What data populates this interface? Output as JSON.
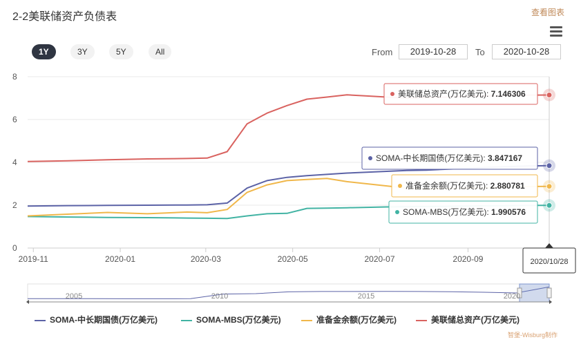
{
  "header": {
    "title": "2-2美联储资产负债表",
    "view_link": "查看图表"
  },
  "range_selector": {
    "buttons": [
      "1Y",
      "3Y",
      "5Y",
      "All"
    ],
    "selected": "1Y",
    "from_label": "From",
    "from_value": "2019-10-28",
    "to_label": "To",
    "to_value": "2020-10-28"
  },
  "colors": {
    "soma_treasury": "#5b62a6",
    "soma_mbs": "#41b3a3",
    "reserves": "#f0b74a",
    "total_assets": "#d9625f"
  },
  "chart_data": {
    "type": "line",
    "x_tick_labels": [
      "2019-11",
      "2020-01",
      "2020-03",
      "2020-05",
      "2020-07",
      "2020-09"
    ],
    "y_tick_labels": [
      "0",
      "2",
      "4",
      "6",
      "8"
    ],
    "ylim": [
      0,
      8
    ],
    "grid": true,
    "legend_position": "bottom",
    "x": [
      "2019-10-28",
      "2019-11-25",
      "2019-12-23",
      "2020-01-20",
      "2020-02-17",
      "2020-03-02",
      "2020-03-16",
      "2020-03-30",
      "2020-04-13",
      "2020-04-27",
      "2020-05-11",
      "2020-05-25",
      "2020-06-08",
      "2020-06-22",
      "2020-07-06",
      "2020-07-20",
      "2020-08-03",
      "2020-08-17",
      "2020-08-31",
      "2020-09-14",
      "2020-09-28",
      "2020-10-12",
      "2020-10-28"
    ],
    "series": [
      {
        "name": "SOMA-中长期国债(万亿美元)",
        "values": [
          1.96,
          1.98,
          1.99,
          2.0,
          2.01,
          2.02,
          2.1,
          2.8,
          3.15,
          3.3,
          3.38,
          3.44,
          3.5,
          3.54,
          3.58,
          3.62,
          3.64,
          3.68,
          3.72,
          3.76,
          3.8,
          3.83,
          3.847167
        ]
      },
      {
        "name": "SOMA-MBS(万亿美元)",
        "values": [
          1.47,
          1.45,
          1.43,
          1.42,
          1.4,
          1.39,
          1.38,
          1.5,
          1.6,
          1.62,
          1.85,
          1.86,
          1.88,
          1.9,
          1.92,
          1.93,
          1.94,
          1.95,
          1.96,
          1.97,
          1.98,
          1.99,
          1.990576
        ]
      },
      {
        "name": "准备金余额(万亿美元)",
        "values": [
          1.5,
          1.58,
          1.66,
          1.6,
          1.68,
          1.65,
          1.8,
          2.6,
          2.95,
          3.15,
          3.2,
          3.25,
          3.1,
          3.0,
          2.9,
          2.8,
          2.75,
          2.78,
          2.8,
          2.82,
          2.85,
          2.87,
          2.880781
        ]
      },
      {
        "name": "美联储总资产(万亿美元)",
        "values": [
          4.04,
          4.07,
          4.12,
          4.16,
          4.18,
          4.2,
          4.5,
          5.8,
          6.3,
          6.65,
          6.95,
          7.05,
          7.15,
          7.1,
          7.05,
          7.0,
          7.02,
          7.05,
          7.08,
          7.1,
          7.12,
          7.14,
          7.146306
        ]
      }
    ],
    "tooltips": [
      {
        "label": "美联储总资产(万亿美元):",
        "value": "7.146306"
      },
      {
        "label": "SOMA-中长期国债(万亿美元):",
        "value": "3.847167"
      },
      {
        "label": "准备金余额(万亿美元):",
        "value": "2.880781"
      },
      {
        "label": "SOMA-MBS(万亿美元):",
        "value": "1.990576"
      }
    ],
    "crosshair_date": "2020/10/28",
    "navigator": {
      "labels": [
        "2005",
        "2010",
        "2015",
        "2020"
      ],
      "values": [
        0.9,
        0.9,
        0.9,
        0.88,
        0.88,
        0.9,
        2.2,
        2.3,
        2.8,
        2.9,
        2.9,
        2.95,
        2.9,
        2.85,
        2.7,
        2.5,
        4.2
      ]
    }
  },
  "legend": {
    "items": [
      "SOMA-中长期国债(万亿美元)",
      "SOMA-MBS(万亿美元)",
      "准备金余额(万亿美元)",
      "美联储总资产(万亿美元)"
    ]
  },
  "footer": {
    "credit": "智堡-Wisburg制作"
  }
}
